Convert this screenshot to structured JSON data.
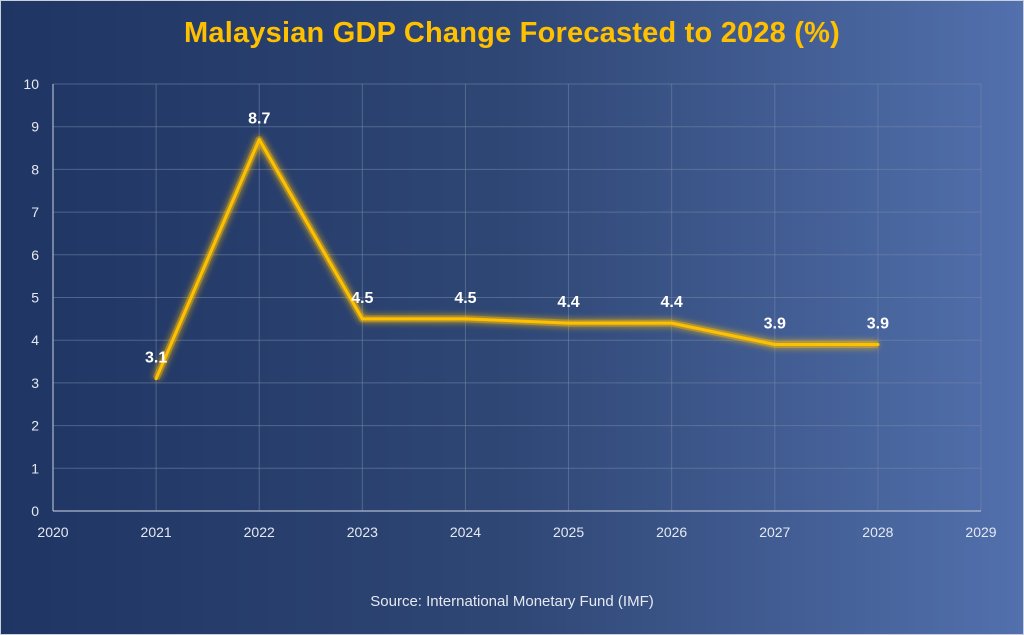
{
  "chart_data": {
    "type": "line",
    "title": "Malaysian GDP Change Forecasted to 2028 (%)",
    "source": "Source: International Monetary Fund (IMF)",
    "xlim": [
      2020,
      2029
    ],
    "ylim": [
      0,
      10
    ],
    "x_ticks": [
      "2020",
      "2021",
      "2022",
      "2023",
      "2024",
      "2025",
      "2026",
      "2027",
      "2028",
      "2029"
    ],
    "y_ticks": [
      "0",
      "1",
      "2",
      "3",
      "4",
      "5",
      "6",
      "7",
      "8",
      "9",
      "10"
    ],
    "grid": true,
    "series": [
      {
        "x": [
          2021,
          2022,
          2023,
          2024,
          2025,
          2026,
          2027,
          2028
        ],
        "values": [
          3.1,
          8.7,
          4.5,
          4.5,
          4.4,
          4.4,
          3.9,
          3.9
        ],
        "labels": [
          "3.1",
          "8.7",
          "4.5",
          "4.5",
          "4.4",
          "4.4",
          "3.9",
          "3.9"
        ],
        "color": "#ffc000"
      }
    ]
  }
}
